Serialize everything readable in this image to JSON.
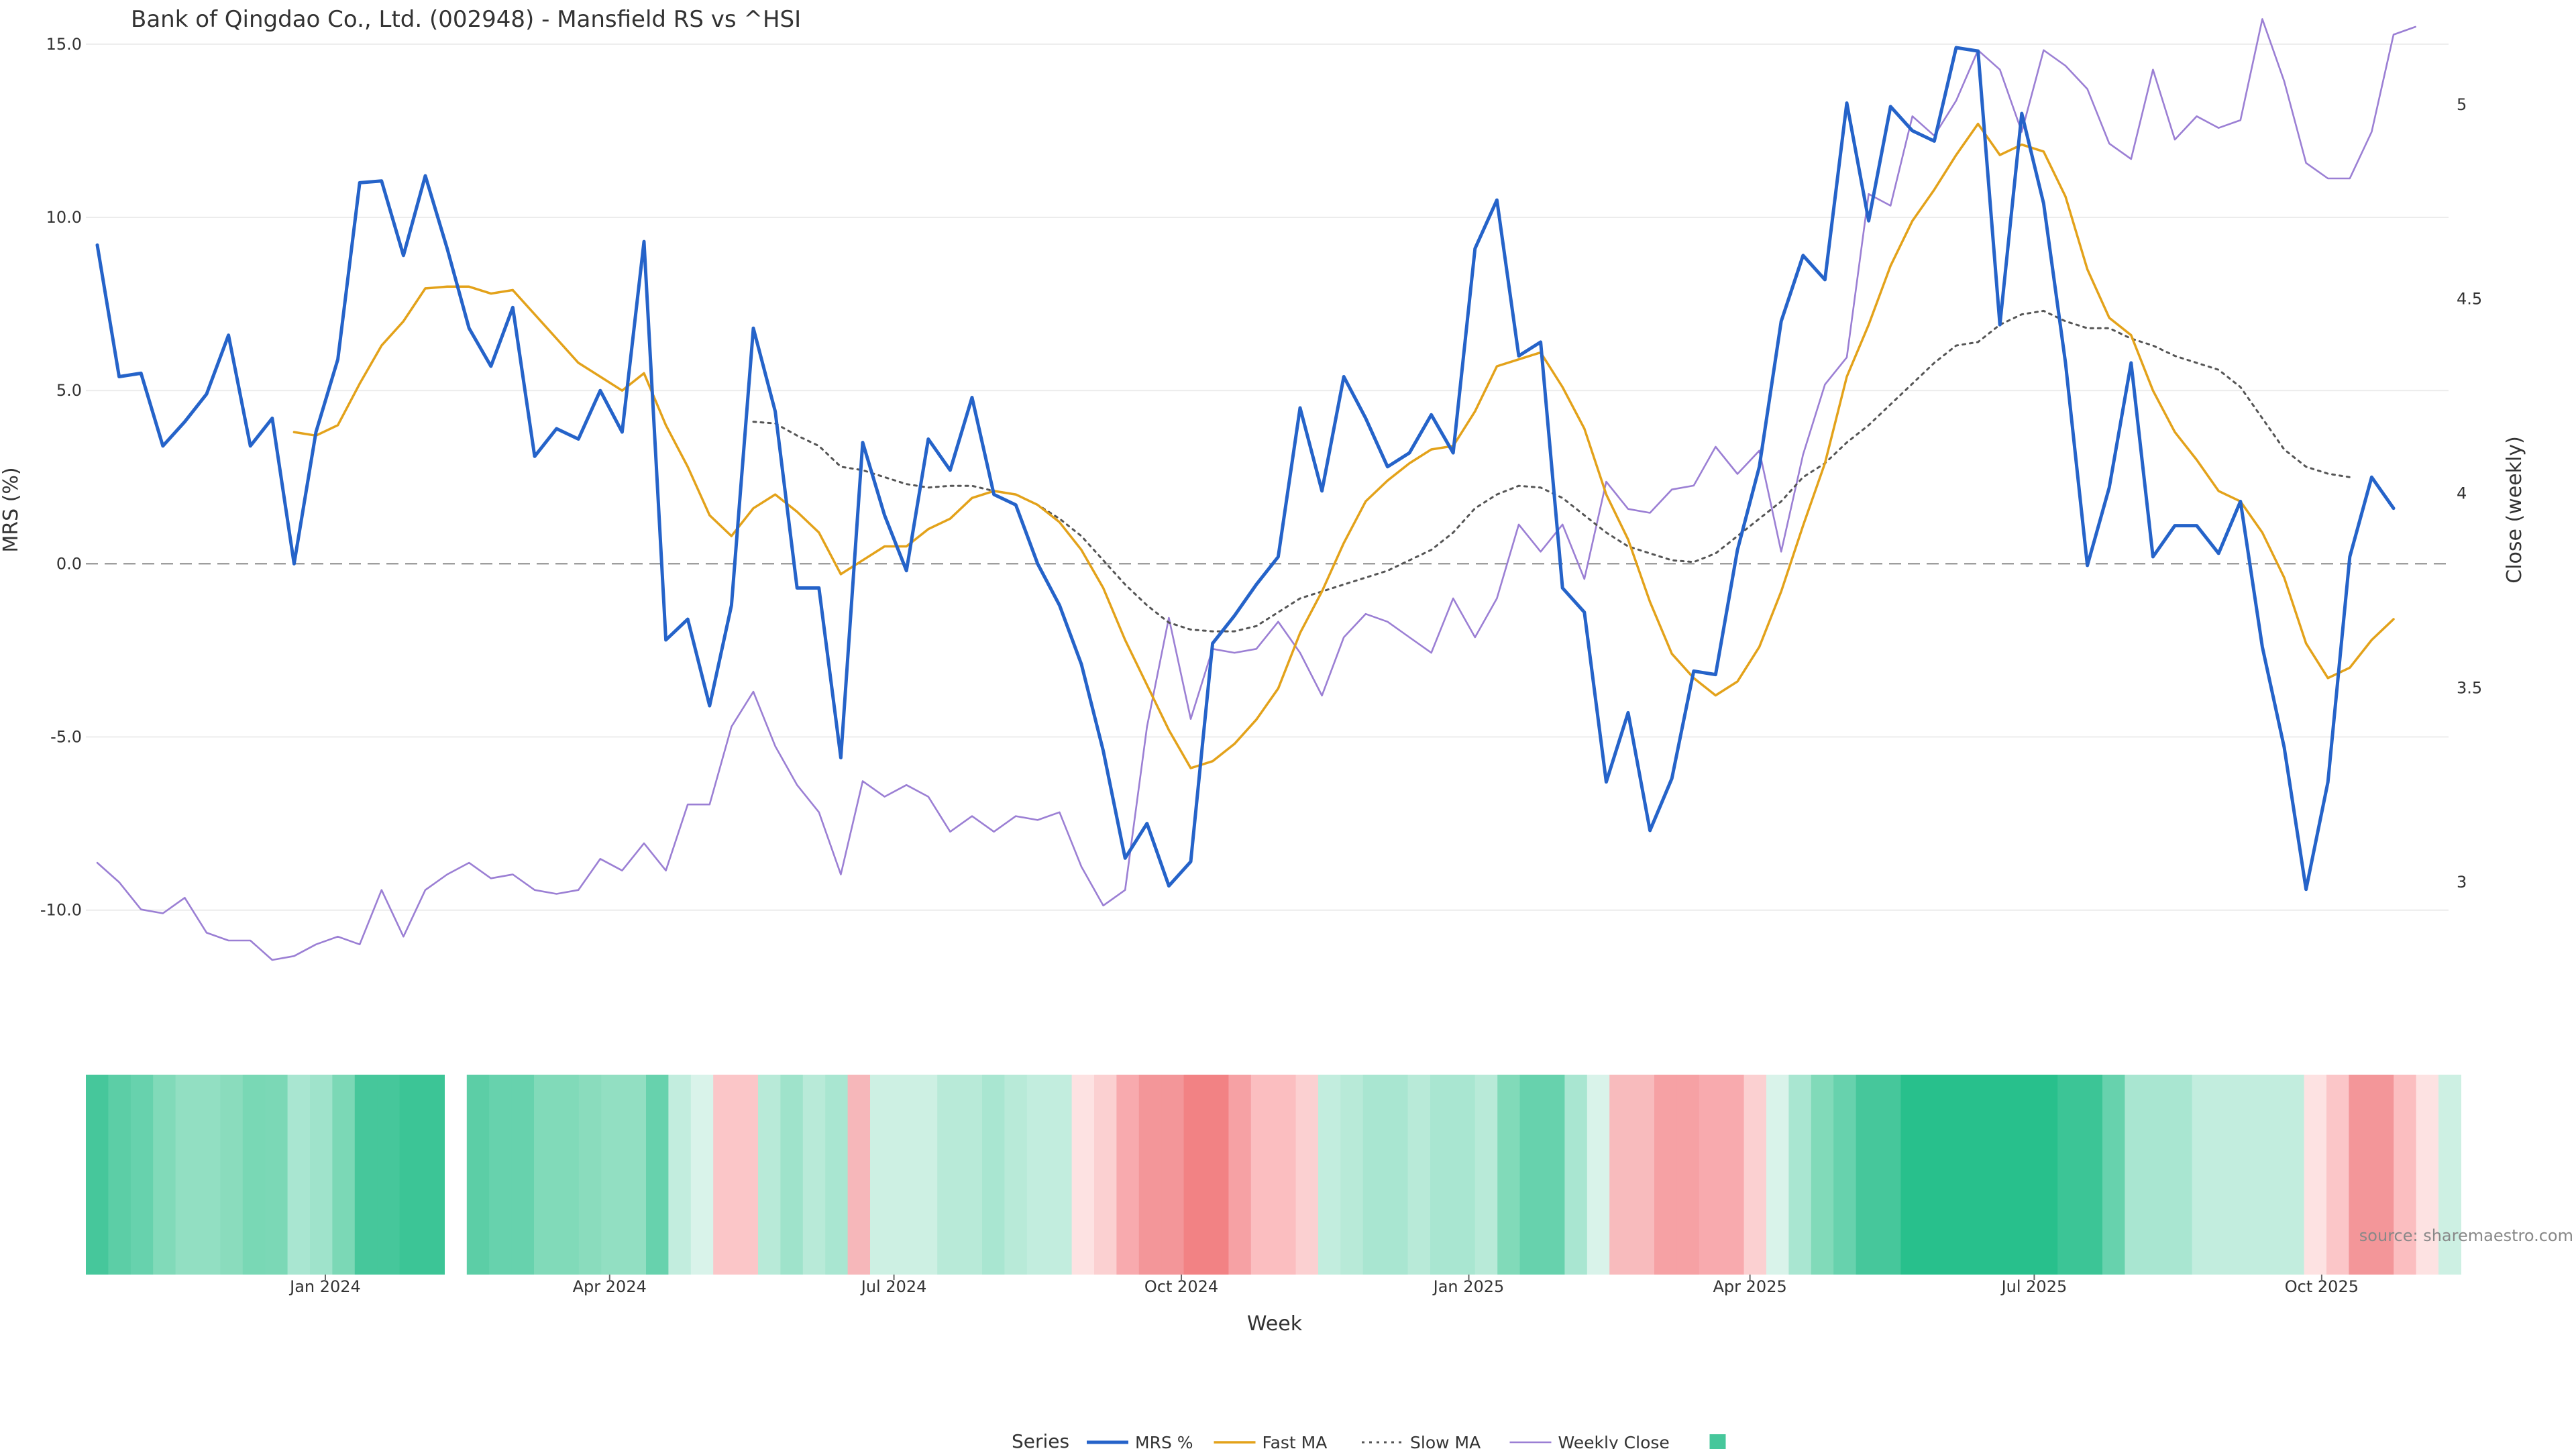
{
  "chart_data": {
    "type": "line",
    "title": "Bank of Qingdao Co., Ltd. (002948) - Mansfield RS vs ^HSI",
    "xlabel": "Week",
    "ylabel_left": "MRS (%)",
    "ylabel_right": "Close (weekly)",
    "source": "source: sharemaestro.com",
    "legend_title": "Series",
    "legend_placement": "bottom-center",
    "ylim_left": [
      -12,
      15.5
    ],
    "ylim_right": [
      2.75,
      5.2
    ],
    "left_ticks": [
      {
        "value": 15,
        "label": "15.0"
      },
      {
        "value": 10,
        "label": "10.0"
      },
      {
        "value": 5,
        "label": "5.0"
      },
      {
        "value": 0,
        "label": "0.0"
      },
      {
        "value": -5,
        "label": "-5.0"
      },
      {
        "value": -10,
        "label": "-10.0"
      }
    ],
    "right_ticks": [
      {
        "value": 5,
        "label": "5"
      },
      {
        "value": 4.5,
        "label": "4.5"
      },
      {
        "value": 4,
        "label": "4"
      },
      {
        "value": 3.5,
        "label": "3.5"
      },
      {
        "value": 3,
        "label": "3"
      }
    ],
    "x_start": "2023-10-20",
    "x_ticks": [
      {
        "date": "2024-01-01",
        "label": "Jan 2024"
      },
      {
        "date": "2024-04-01",
        "label": "Apr 2024"
      },
      {
        "date": "2024-07-01",
        "label": "Jul 2024"
      },
      {
        "date": "2024-10-01",
        "label": "Oct 2024"
      },
      {
        "date": "2025-01-01",
        "label": "Jan 2025"
      },
      {
        "date": "2025-04-01",
        "label": "Apr 2025"
      },
      {
        "date": "2025-07-01",
        "label": "Jul 2025"
      },
      {
        "date": "2025-10-01",
        "label": "Oct 2025"
      }
    ],
    "series": [
      {
        "name": "MRS %",
        "color": "#2563c9",
        "style": "solid",
        "axis": "left",
        "values": [
          9.2,
          5.4,
          5.5,
          3.4,
          4.1,
          4.9,
          6.6,
          3.4,
          4.2,
          0.0,
          3.8,
          5.9,
          11.0,
          11.05,
          8.9,
          11.2,
          9.1,
          6.8,
          5.7,
          7.4,
          3.1,
          3.9,
          3.6,
          5.0,
          3.8,
          9.3,
          -2.2,
          -1.6,
          -4.1,
          -1.2,
          6.8,
          4.4,
          -0.7,
          -0.7,
          -5.6,
          3.5,
          1.4,
          -0.2,
          3.6,
          2.7,
          4.8,
          2.0,
          1.7,
          0.0,
          -1.2,
          -2.9,
          -5.4,
          -8.5,
          -7.5,
          -9.3,
          -8.6,
          -2.3,
          -1.5,
          -0.6,
          0.2,
          4.5,
          2.1,
          5.4,
          4.2,
          2.8,
          3.2,
          4.3,
          3.2,
          9.1,
          10.5,
          6.0,
          6.4,
          -0.7,
          -1.4,
          -6.3,
          -4.3,
          -7.7,
          -6.2,
          -3.1,
          -3.2,
          0.4,
          2.8,
          7.0,
          8.9,
          8.2,
          13.3,
          9.9,
          13.2,
          12.5,
          12.2,
          14.9,
          14.8,
          6.9,
          13.0,
          10.4,
          5.8,
          -0.05,
          2.2,
          5.8,
          0.2,
          1.1,
          1.1,
          0.3,
          1.8,
          -2.4,
          -5.3,
          -9.4,
          -6.3,
          0.2,
          2.5,
          1.6
        ]
      },
      {
        "name": "Fast MA",
        "color": "#e3a21a",
        "style": "solid",
        "axis": "left",
        "offset": 9,
        "values": [
          3.8,
          3.7,
          4.0,
          5.2,
          6.3,
          7.0,
          7.95,
          8.0,
          8.0,
          7.8,
          7.9,
          7.2,
          6.5,
          5.8,
          5.4,
          5.0,
          5.5,
          4.0,
          2.8,
          1.4,
          0.8,
          1.6,
          2.0,
          1.5,
          0.9,
          -0.3,
          0.1,
          0.5,
          0.5,
          1.0,
          1.3,
          1.9,
          2.1,
          2.0,
          1.7,
          1.2,
          0.4,
          -0.7,
          -2.2,
          -3.5,
          -4.8,
          -5.9,
          -5.7,
          -5.2,
          -4.5,
          -3.6,
          -2.0,
          -0.8,
          0.6,
          1.8,
          2.4,
          2.9,
          3.3,
          3.4,
          4.4,
          5.7,
          5.9,
          6.1,
          5.1,
          3.9,
          2.0,
          0.7,
          -1.1,
          -2.6,
          -3.3,
          -3.8,
          -3.4,
          -2.4,
          -0.8,
          1.1,
          2.9,
          5.4,
          6.9,
          8.6,
          9.9,
          10.8,
          11.8,
          12.7,
          11.8,
          12.1,
          11.9,
          10.6,
          8.5,
          7.1,
          6.6,
          5.0,
          3.8,
          3.0,
          2.1,
          1.8,
          0.9,
          -0.4,
          -2.3,
          -3.3,
          -3.0,
          -2.2,
          -1.6
        ]
      },
      {
        "name": "Slow MA",
        "color": "#555555",
        "style": "dotted",
        "axis": "left",
        "offset": 30,
        "values": [
          4.1,
          4.05,
          3.7,
          3.4,
          2.8,
          2.7,
          2.5,
          2.3,
          2.2,
          2.25,
          2.25,
          2.1,
          2.0,
          1.7,
          1.3,
          0.8,
          0.1,
          -0.6,
          -1.2,
          -1.7,
          -1.9,
          -1.95,
          -1.95,
          -1.8,
          -1.4,
          -1.0,
          -0.8,
          -0.6,
          -0.4,
          -0.2,
          0.1,
          0.4,
          0.9,
          1.6,
          2.0,
          2.25,
          2.2,
          1.9,
          1.4,
          0.9,
          0.5,
          0.3,
          0.1,
          0.05,
          0.3,
          0.8,
          1.3,
          1.8,
          2.5,
          2.9,
          3.5,
          4.0,
          4.6,
          5.2,
          5.8,
          6.3,
          6.4,
          6.9,
          7.2,
          7.3,
          7.0,
          6.8,
          6.8,
          6.5,
          6.3,
          6.0,
          5.8,
          5.6,
          5.1,
          4.2,
          3.3,
          2.8,
          2.6,
          2.5
        ]
      },
      {
        "name": "Weekly Close",
        "color": "#9b7fd4",
        "style": "solid",
        "axis": "right",
        "values": [
          3.05,
          3.0,
          2.93,
          2.92,
          2.96,
          2.87,
          2.85,
          2.85,
          2.8,
          2.81,
          2.84,
          2.86,
          2.84,
          2.98,
          2.86,
          2.98,
          3.02,
          3.05,
          3.01,
          3.02,
          2.98,
          2.97,
          2.98,
          3.06,
          3.03,
          3.1,
          3.03,
          3.2,
          3.2,
          3.4,
          3.49,
          3.35,
          3.25,
          3.18,
          3.02,
          3.26,
          3.22,
          3.25,
          3.22,
          3.13,
          3.17,
          3.13,
          3.17,
          3.16,
          3.18,
          3.04,
          2.94,
          2.98,
          3.4,
          3.68,
          3.42,
          3.6,
          3.59,
          3.6,
          3.67,
          3.59,
          3.48,
          3.63,
          3.69,
          3.67,
          3.63,
          3.59,
          3.73,
          3.63,
          3.73,
          3.92,
          3.85,
          3.92,
          3.78,
          4.03,
          3.96,
          3.95,
          4.01,
          4.02,
          4.12,
          4.05,
          4.11,
          3.85,
          4.1,
          4.28,
          4.35,
          4.77,
          4.74,
          4.97,
          4.92,
          5.01,
          5.14,
          5.09,
          4.93,
          5.14,
          5.1,
          5.04,
          4.9,
          4.86,
          5.09,
          4.91,
          4.97,
          4.94,
          4.96,
          5.22,
          5.06,
          4.85,
          4.81,
          4.81,
          4.93,
          5.18,
          5.2
        ]
      }
    ],
    "regime_strip": {
      "colors": [
        "#46c79b",
        "#5ccea6",
        "#67d2ad",
        "#81dab9",
        "#92dfc2",
        "#92dfc2",
        "#8adcbd",
        "#79d8b5",
        "#7bd8b6",
        "#a9e6d1",
        "#9fe3cb",
        "#7bd8b6",
        "#46c79b",
        "#46c79b",
        "#3cc596",
        "#3cc596",
        "",
        "#5ccea6",
        "#67d2ad",
        "#67d2ad",
        "#81dab9",
        "#81dab9",
        "#8adcbd",
        "#92dfc2",
        "#92dfc2",
        "#67d2ad",
        "#c2edde",
        "#d9f3ea",
        "#fbc6c8",
        "#fbc6c8",
        "#b8ead8",
        "#9fe3cb",
        "#b8ead8",
        "#a9e6d1",
        "#f6b7ba",
        "#cdf0e3",
        "#cdf0e3",
        "#cdf0e3",
        "#b8ead8",
        "#b8ead8",
        "#a9e6d1",
        "#b8ead8",
        "#c2edde",
        "#c2edde",
        "#fde2e2",
        "#fbd0d1",
        "#f8aaae",
        "#f39699",
        "#f39699",
        "#f28284",
        "#f28284",
        "#f6a1a4",
        "#fbbec0",
        "#fbbec0",
        "#fbd0d1",
        "#c2edde",
        "#b8ead8",
        "#a9e6d1",
        "#a9e6d1",
        "#b8ead8",
        "#a9e6d1",
        "#a9e6d1",
        "#b8ead8",
        "#81dab9",
        "#67d2ad",
        "#67d2ad",
        "#a9e6d1",
        "#d9f3ea",
        "#f8bbbd",
        "#f8bbbd",
        "#f6a1a4",
        "#f6a1a4",
        "#f8aaae",
        "#f8aaae",
        "#fbd0d1",
        "#d9f3ea",
        "#a9e6d1",
        "#81dab9",
        "#67d2ad",
        "#46c79b",
        "#46c79b",
        "#28c08c",
        "#28c08c",
        "#28c08c",
        "#28c08c",
        "#28c08c",
        "#28c08c",
        "#28c08c",
        "#3cc596",
        "#3cc596",
        "#67d2ad",
        "#a9e6d1",
        "#a9e6d1",
        "#a9e6d1",
        "#c2edde",
        "#c2edde",
        "#c2edde",
        "#c2edde",
        "#c2edde",
        "#fde2e2",
        "#fbc6c8",
        "#f39699",
        "#f39699",
        "#fbbec0",
        "#fde2e2",
        "#cdf0e3"
      ]
    }
  }
}
